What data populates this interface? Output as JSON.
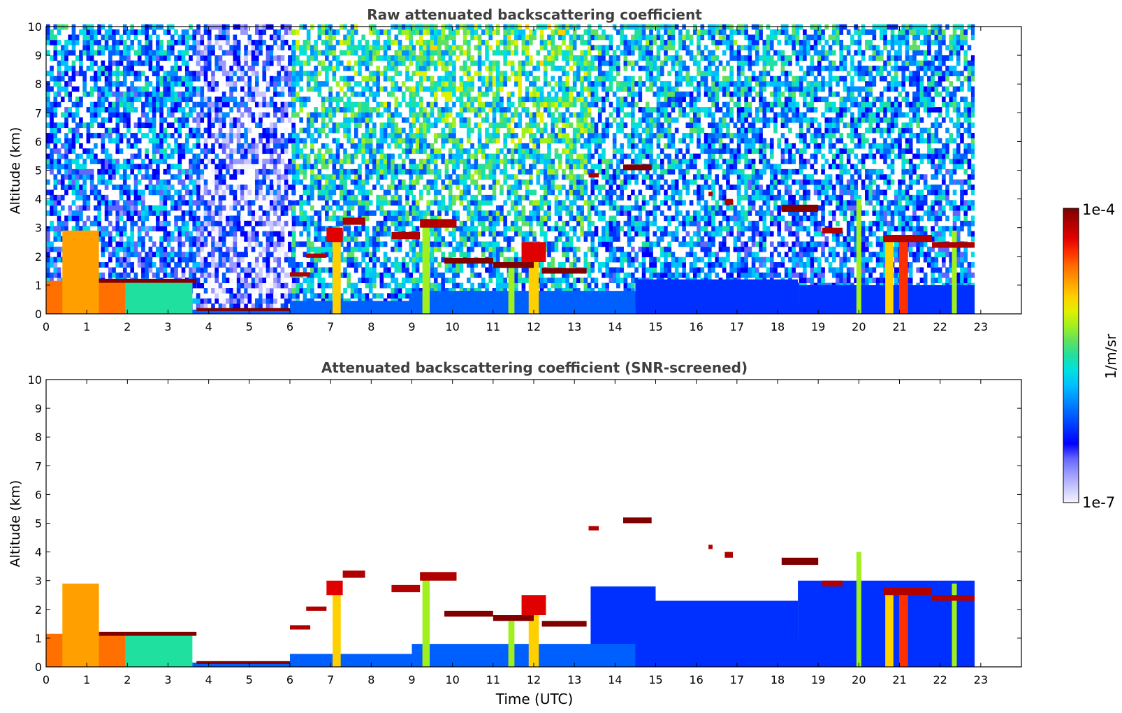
{
  "figure": {
    "colorbar": {
      "max_label": "1e-4",
      "min_label": "1e-7",
      "unit_label": "1/m/sr",
      "scale": "log",
      "colors": [
        "#f4f4ff",
        "#c8c8ff",
        "#9a9aff",
        "#6464ff",
        "#0000ff",
        "#0030ff",
        "#0060ff",
        "#0090ff",
        "#00c0ff",
        "#00e0e0",
        "#20e0a0",
        "#60e060",
        "#a0f020",
        "#e0f000",
        "#ffd000",
        "#ffa000",
        "#ff7000",
        "#ff3000",
        "#e00000",
        "#b00000",
        "#800000"
      ]
    }
  },
  "chart_data": [
    {
      "type": "heatmap",
      "title": "Raw attenuated backscattering coefficient",
      "xlabel": "",
      "ylabel": "Altitude (km)",
      "xlim": [
        0,
        24
      ],
      "ylim": [
        0,
        10
      ],
      "x_ticks": [
        "0",
        "1",
        "2",
        "3",
        "4",
        "5",
        "6",
        "7",
        "8",
        "9",
        "10",
        "11",
        "12",
        "13",
        "14",
        "15",
        "16",
        "17",
        "18",
        "19",
        "20",
        "21",
        "22",
        "23"
      ],
      "y_ticks": [
        "0",
        "1",
        "2",
        "3",
        "4",
        "5",
        "6",
        "7",
        "8",
        "9",
        "10"
      ],
      "data_end_time": 22.85,
      "screened": false,
      "noise_regions": [
        {
          "t0": 0.0,
          "t1": 3.7,
          "level": 0.42
        },
        {
          "t0": 3.7,
          "t1": 6.05,
          "level": 0.22
        },
        {
          "t0": 6.05,
          "t1": 9.0,
          "level": 0.58
        },
        {
          "t0": 9.0,
          "t1": 13.4,
          "level": 0.62
        },
        {
          "t0": 13.4,
          "t1": 17.0,
          "level": 0.5
        },
        {
          "t0": 17.0,
          "t1": 22.85,
          "level": 0.47
        }
      ],
      "boundary_layer": [
        {
          "t0": 0.0,
          "t1": 1.95,
          "top": 1.15,
          "level": 0.78
        },
        {
          "t0": 1.95,
          "t1": 3.6,
          "top": 1.1,
          "level": 0.5
        },
        {
          "t0": 3.6,
          "t1": 6.0,
          "top": 0.15,
          "level": 0.3
        },
        {
          "t0": 6.0,
          "t1": 9.0,
          "top": 0.45,
          "level": 0.3
        },
        {
          "t0": 9.0,
          "t1": 14.5,
          "top": 0.8,
          "level": 0.28
        },
        {
          "t0": 14.5,
          "t1": 18.5,
          "top": 1.2,
          "level": 0.26
        },
        {
          "t0": 18.5,
          "t1": 22.85,
          "top": 1.0,
          "level": 0.26
        }
      ],
      "cloud_layers": [
        {
          "t0": 0.4,
          "t1": 1.3,
          "base": 0.0,
          "top": 2.9,
          "level": 0.75
        },
        {
          "t0": 1.3,
          "t1": 3.7,
          "base": 1.08,
          "top": 1.22,
          "level": 1.0
        },
        {
          "t0": 3.7,
          "t1": 6.0,
          "base": 0.1,
          "top": 0.2,
          "level": 0.98
        },
        {
          "t0": 6.0,
          "t1": 6.5,
          "base": 1.3,
          "top": 1.45,
          "level": 0.97
        },
        {
          "t0": 6.4,
          "t1": 6.9,
          "base": 1.95,
          "top": 2.1,
          "level": 0.97
        },
        {
          "t0": 6.9,
          "t1": 7.3,
          "base": 2.5,
          "top": 3.0,
          "level": 0.9
        },
        {
          "t0": 7.3,
          "t1": 7.85,
          "base": 3.1,
          "top": 3.35,
          "level": 0.97
        },
        {
          "t0": 8.5,
          "t1": 9.2,
          "base": 2.6,
          "top": 2.85,
          "level": 0.95
        },
        {
          "t0": 9.2,
          "t1": 10.1,
          "base": 3.0,
          "top": 3.3,
          "level": 0.97
        },
        {
          "t0": 9.8,
          "t1": 11.0,
          "base": 1.75,
          "top": 1.95,
          "level": 0.98
        },
        {
          "t0": 11.0,
          "t1": 12.0,
          "base": 1.6,
          "top": 1.8,
          "level": 0.98
        },
        {
          "t0": 11.7,
          "t1": 12.3,
          "base": 1.8,
          "top": 2.5,
          "level": 0.88
        },
        {
          "t0": 12.2,
          "t1": 13.3,
          "base": 1.4,
          "top": 1.6,
          "level": 0.98
        },
        {
          "t0": 13.35,
          "t1": 13.6,
          "base": 4.75,
          "top": 4.9,
          "level": 0.97
        },
        {
          "t0": 14.2,
          "t1": 14.9,
          "base": 5.0,
          "top": 5.2,
          "level": 0.98
        },
        {
          "t0": 16.3,
          "t1": 16.4,
          "base": 4.1,
          "top": 4.25,
          "level": 0.95
        },
        {
          "t0": 16.7,
          "t1": 16.9,
          "base": 3.8,
          "top": 4.0,
          "level": 0.95
        },
        {
          "t0": 18.1,
          "t1": 19.0,
          "base": 3.55,
          "top": 3.8,
          "level": 0.98
        },
        {
          "t0": 19.1,
          "t1": 19.6,
          "base": 2.8,
          "top": 3.0,
          "level": 0.97
        },
        {
          "t0": 20.6,
          "t1": 21.8,
          "base": 2.5,
          "top": 2.75,
          "level": 0.97
        },
        {
          "t0": 21.8,
          "t1": 22.85,
          "base": 2.3,
          "top": 2.5,
          "level": 0.97
        }
      ],
      "precip_shafts": [
        {
          "t": 7.15,
          "top": 2.7,
          "width": 0.2,
          "level": 0.7
        },
        {
          "t": 9.35,
          "top": 3.3,
          "width": 0.18,
          "level": 0.62
        },
        {
          "t": 11.45,
          "top": 1.6,
          "width": 0.15,
          "level": 0.6
        },
        {
          "t": 12.0,
          "top": 2.2,
          "width": 0.25,
          "level": 0.7
        },
        {
          "t": 20.0,
          "top": 4.0,
          "width": 0.12,
          "level": 0.6
        },
        {
          "t": 20.75,
          "top": 2.6,
          "width": 0.2,
          "level": 0.72
        },
        {
          "t": 21.1,
          "top": 2.6,
          "width": 0.22,
          "level": 0.85
        },
        {
          "t": 22.35,
          "top": 2.9,
          "width": 0.12,
          "level": 0.58
        }
      ]
    },
    {
      "type": "heatmap",
      "title": "Attenuated backscattering coefficient (SNR-screened)",
      "xlabel": "Time (UTC)",
      "ylabel": "Altitude (km)",
      "xlim": [
        0,
        24
      ],
      "ylim": [
        0,
        10
      ],
      "x_ticks": [
        "0",
        "1",
        "2",
        "3",
        "4",
        "5",
        "6",
        "7",
        "8",
        "9",
        "10",
        "11",
        "12",
        "13",
        "14",
        "15",
        "16",
        "17",
        "18",
        "19",
        "20",
        "21",
        "22",
        "23"
      ],
      "y_ticks": [
        "0",
        "1",
        "2",
        "3",
        "4",
        "5",
        "6",
        "7",
        "8",
        "9",
        "10"
      ],
      "data_end_time": 22.85,
      "screened": true,
      "noise_regions": [],
      "boundary_layer": [
        {
          "t0": 0.0,
          "t1": 1.95,
          "top": 1.15,
          "level": 0.78
        },
        {
          "t0": 1.95,
          "t1": 3.6,
          "top": 1.1,
          "level": 0.5
        },
        {
          "t0": 3.6,
          "t1": 6.0,
          "top": 0.15,
          "level": 0.3
        },
        {
          "t0": 6.0,
          "t1": 9.0,
          "top": 0.45,
          "level": 0.3
        },
        {
          "t0": 9.0,
          "t1": 14.5,
          "top": 0.8,
          "level": 0.28
        },
        {
          "t0": 14.5,
          "t1": 18.5,
          "top": 1.2,
          "level": 0.26
        },
        {
          "t0": 18.5,
          "t1": 22.85,
          "top": 1.0,
          "level": 0.26
        }
      ],
      "screened_aerosol": [
        {
          "t0": 13.4,
          "t1": 15.0,
          "top": 2.8,
          "level": 0.25
        },
        {
          "t0": 15.0,
          "t1": 18.5,
          "top": 2.3,
          "level": 0.24
        },
        {
          "t0": 18.5,
          "t1": 22.85,
          "top": 3.0,
          "level": 0.25
        }
      ],
      "cloud_layers": [
        {
          "t0": 0.4,
          "t1": 1.3,
          "base": 0.0,
          "top": 2.9,
          "level": 0.75
        },
        {
          "t0": 1.3,
          "t1": 3.7,
          "base": 1.08,
          "top": 1.22,
          "level": 1.0
        },
        {
          "t0": 3.7,
          "t1": 6.0,
          "base": 0.1,
          "top": 0.2,
          "level": 0.98
        },
        {
          "t0": 6.0,
          "t1": 6.5,
          "base": 1.3,
          "top": 1.45,
          "level": 0.97
        },
        {
          "t0": 6.4,
          "t1": 6.9,
          "base": 1.95,
          "top": 2.1,
          "level": 0.97
        },
        {
          "t0": 6.9,
          "t1": 7.3,
          "base": 2.5,
          "top": 3.0,
          "level": 0.9
        },
        {
          "t0": 7.3,
          "t1": 7.85,
          "base": 3.1,
          "top": 3.35,
          "level": 0.97
        },
        {
          "t0": 8.5,
          "t1": 9.2,
          "base": 2.6,
          "top": 2.85,
          "level": 0.95
        },
        {
          "t0": 9.2,
          "t1": 10.1,
          "base": 3.0,
          "top": 3.3,
          "level": 0.97
        },
        {
          "t0": 9.8,
          "t1": 11.0,
          "base": 1.75,
          "top": 1.95,
          "level": 0.98
        },
        {
          "t0": 11.0,
          "t1": 12.0,
          "base": 1.6,
          "top": 1.8,
          "level": 0.98
        },
        {
          "t0": 11.7,
          "t1": 12.3,
          "base": 1.8,
          "top": 2.5,
          "level": 0.88
        },
        {
          "t0": 12.2,
          "t1": 13.3,
          "base": 1.4,
          "top": 1.6,
          "level": 0.98
        },
        {
          "t0": 13.35,
          "t1": 13.6,
          "base": 4.75,
          "top": 4.9,
          "level": 0.97
        },
        {
          "t0": 14.2,
          "t1": 14.9,
          "base": 5.0,
          "top": 5.2,
          "level": 0.98
        },
        {
          "t0": 16.3,
          "t1": 16.4,
          "base": 4.1,
          "top": 4.25,
          "level": 0.95
        },
        {
          "t0": 16.7,
          "t1": 16.9,
          "base": 3.8,
          "top": 4.0,
          "level": 0.95
        },
        {
          "t0": 18.1,
          "t1": 19.0,
          "base": 3.55,
          "top": 3.8,
          "level": 0.98
        },
        {
          "t0": 19.1,
          "t1": 19.6,
          "base": 2.8,
          "top": 3.0,
          "level": 0.97
        },
        {
          "t0": 20.6,
          "t1": 21.8,
          "base": 2.5,
          "top": 2.75,
          "level": 0.97
        },
        {
          "t0": 21.8,
          "t1": 22.85,
          "base": 2.3,
          "top": 2.5,
          "level": 0.97
        }
      ],
      "precip_shafts": [
        {
          "t": 7.15,
          "top": 2.7,
          "width": 0.2,
          "level": 0.7
        },
        {
          "t": 9.35,
          "top": 3.3,
          "width": 0.18,
          "level": 0.62
        },
        {
          "t": 11.45,
          "top": 1.6,
          "width": 0.15,
          "level": 0.6
        },
        {
          "t": 12.0,
          "top": 2.2,
          "width": 0.25,
          "level": 0.7
        },
        {
          "t": 20.0,
          "top": 4.0,
          "width": 0.12,
          "level": 0.6
        },
        {
          "t": 20.75,
          "top": 2.6,
          "width": 0.2,
          "level": 0.72
        },
        {
          "t": 21.1,
          "top": 2.6,
          "width": 0.22,
          "level": 0.85
        },
        {
          "t": 22.35,
          "top": 2.9,
          "width": 0.12,
          "level": 0.58
        }
      ]
    }
  ]
}
